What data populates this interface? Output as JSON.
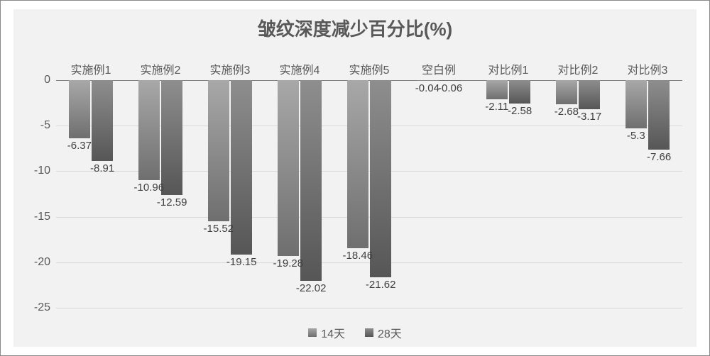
{
  "chart": {
    "type": "bar",
    "title": "皱纹深度减少百分比(%)",
    "title_fontsize": 26,
    "title_color": "#595959",
    "categories": [
      "实施例1",
      "实施例2",
      "实施例3",
      "实施例4",
      "实施例5",
      "空白例",
      "对比例1",
      "对比例2",
      "对比例3"
    ],
    "category_fontsize": 16,
    "category_color": "#595959",
    "series": [
      {
        "name": "14天",
        "color_top": "#a8a8a8",
        "color_bottom": "#6f6f6f",
        "values": [
          -6.37,
          -10.96,
          -15.52,
          -19.28,
          -18.46,
          -0.04,
          -2.11,
          -2.68,
          -5.3
        ],
        "labels": [
          "-6.37",
          "-10.96",
          "-15.52",
          "-19.28",
          "-18.46",
          "-0.04",
          "-2.11",
          "-2.68",
          "-5.3"
        ]
      },
      {
        "name": "28天",
        "color_top": "#8e8e8e",
        "color_bottom": "#565656",
        "values": [
          -8.91,
          -12.59,
          -19.15,
          -22.02,
          -21.62,
          -0.06,
          -2.58,
          -3.17,
          -7.66
        ],
        "labels": [
          "-8.91",
          "-12.59",
          "-19.15",
          "-22.02",
          "-21.62",
          "-0.06",
          "-2.58",
          "-3.17",
          "-7.66"
        ]
      }
    ],
    "ylim": [
      -25,
      0
    ],
    "ytick_step": 5,
    "yticks": [
      0,
      -5,
      -10,
      -15,
      -20,
      -25
    ],
    "ytick_fontsize": 16,
    "ytick_color": "#595959",
    "datalabel_fontsize": 15,
    "datalabel_color": "#404040",
    "plot_background": "#f2f2f2",
    "outer_background": "#ffffff",
    "outer_border_color": "#8a8a8a",
    "grid_color": "#d9d9d9",
    "baseline_color": "#808080",
    "bar_group_width": 0.64,
    "bar_gap": 0.02,
    "legend": {
      "fontsize": 16,
      "color": "#595959",
      "swatch_size": 12,
      "items": [
        {
          "label": "14天",
          "series": 0
        },
        {
          "label": "28天",
          "series": 1
        }
      ]
    }
  }
}
